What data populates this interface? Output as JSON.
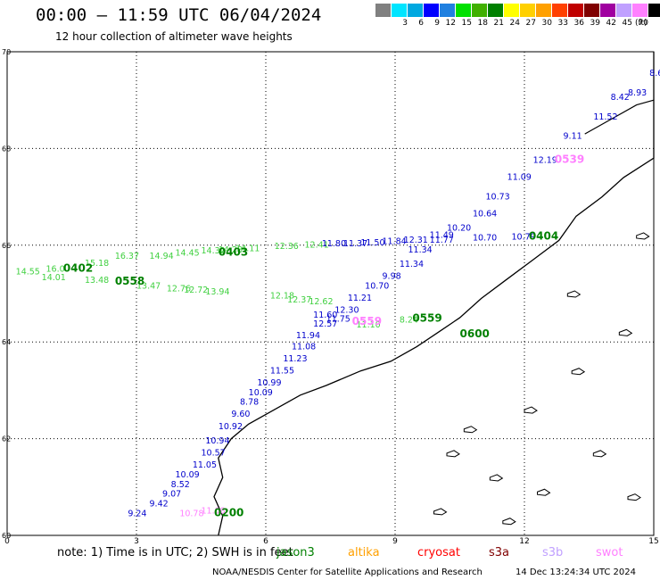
{
  "header": {
    "title": "00:00 – 11:59 UTC 06/04/2024",
    "subtitle": "12 hour collection of altimeter wave heights"
  },
  "scale": {
    "unit": "(ft)",
    "bins": [
      {
        "label": "",
        "color": "#808080"
      },
      {
        "label": "3",
        "color": "#00e5ff"
      },
      {
        "label": "6",
        "color": "#00a8e0"
      },
      {
        "label": "9",
        "color": "#0000ff"
      },
      {
        "label": "12",
        "color": "#2080e0"
      },
      {
        "label": "15",
        "color": "#00e000"
      },
      {
        "label": "18",
        "color": "#40b000"
      },
      {
        "label": "21",
        "color": "#008000"
      },
      {
        "label": "24",
        "color": "#ffff00"
      },
      {
        "label": "27",
        "color": "#ffd000"
      },
      {
        "label": "30",
        "color": "#ffa000"
      },
      {
        "label": "33",
        "color": "#ff4000"
      },
      {
        "label": "36",
        "color": "#c00000"
      },
      {
        "label": "39",
        "color": "#800000"
      },
      {
        "label": "42",
        "color": "#a000a0"
      },
      {
        "label": "45",
        "color": "#c0a0ff"
      },
      {
        "label": "70",
        "color": "#ff80ff"
      },
      {
        "label": "",
        "color": "#000000"
      }
    ]
  },
  "axes": {
    "lat_ticks": [
      "70",
      "68",
      "66",
      "64",
      "62",
      "60"
    ],
    "lon_ticks": [
      "0",
      "3",
      "6",
      "9",
      "12",
      "15"
    ]
  },
  "tracks": [
    {
      "name": "track-0402",
      "time": "0402",
      "time_color": "#008000",
      "label_color": "#40d040",
      "points": [
        {
          "v": "14.55",
          "lon": 0.2,
          "lat": 65.4
        },
        {
          "v": "16.0",
          "lon": 0.9,
          "lat": 65.45
        },
        {
          "v": "15.18",
          "lon": 1.8,
          "lat": 65.57
        },
        {
          "v": "14.94",
          "lon": 3.3,
          "lat": 65.72
        },
        {
          "v": "14.32",
          "lon": 4.5,
          "lat": 65.83
        },
        {
          "v": "14.11",
          "lon": 5.3,
          "lat": 65.88
        },
        {
          "v": "12.36",
          "lon": 6.2,
          "lat": 65.92
        },
        {
          "v": "12.41",
          "lon": 6.9,
          "lat": 65.95
        }
      ]
    },
    {
      "name": "track-0403",
      "time": "0403",
      "time_color": "#008000",
      "label_color": "#40d040",
      "points": [
        {
          "v": "16.37",
          "lon": 2.5,
          "lat": 65.72
        },
        {
          "v": "14.45",
          "lon": 3.9,
          "lat": 65.78
        },
        {
          "v": "14.28",
          "lon": 4.9,
          "lat": 65.85
        }
      ]
    },
    {
      "name": "track-0558",
      "time": "0558",
      "time_color": "#008000",
      "label_color": "#40d040",
      "points": [
        {
          "v": "14.01",
          "lon": 0.8,
          "lat": 65.28
        },
        {
          "v": "13.48",
          "lon": 1.8,
          "lat": 65.22
        },
        {
          "v": "13.47",
          "lon": 3.0,
          "lat": 65.1
        },
        {
          "v": "12.76",
          "lon": 3.7,
          "lat": 65.05
        },
        {
          "v": "12.72",
          "lon": 4.1,
          "lat": 65.02
        },
        {
          "v": "13.94",
          "lon": 4.6,
          "lat": 64.98
        },
        {
          "v": "12.18",
          "lon": 6.1,
          "lat": 64.9
        },
        {
          "v": "12.37",
          "lon": 6.5,
          "lat": 64.82
        },
        {
          "v": "12.62",
          "lon": 7.0,
          "lat": 64.78
        }
      ]
    },
    {
      "name": "track-0404",
      "time": "0404",
      "time_color": "#008000",
      "label_color": "#0000cc",
      "points": [
        {
          "v": "11.80",
          "lon": 7.3,
          "lat": 65.98
        },
        {
          "v": "11.37",
          "lon": 7.8,
          "lat": 65.98
        },
        {
          "v": "11.50",
          "lon": 8.2,
          "lat": 66.0
        },
        {
          "v": "11.84",
          "lon": 8.7,
          "lat": 66.02
        },
        {
          "v": "12.31",
          "lon": 9.2,
          "lat": 66.05
        },
        {
          "v": "11.77",
          "lon": 9.8,
          "lat": 66.05
        },
        {
          "v": "10.70",
          "lon": 10.8,
          "lat": 66.1
        },
        {
          "v": "10.79",
          "lon": 11.7,
          "lat": 66.12
        }
      ]
    },
    {
      "name": "track-0539",
      "time": "0539",
      "time_color": "#ff80ff",
      "label_color": "#0000cc",
      "points": [
        {
          "v": "8.6",
          "lon": 14.9,
          "lat": 69.5
        },
        {
          "v": "8.93",
          "lon": 14.4,
          "lat": 69.1
        },
        {
          "v": "8.42",
          "lon": 14.0,
          "lat": 69.0
        },
        {
          "v": "11.52",
          "lon": 13.6,
          "lat": 68.6
        },
        {
          "v": "9.11",
          "lon": 12.9,
          "lat": 68.2
        },
        {
          "v": "12.19",
          "lon": 12.2,
          "lat": 67.7
        },
        {
          "v": "11.09",
          "lon": 11.6,
          "lat": 67.35
        },
        {
          "v": "10.73",
          "lon": 11.1,
          "lat": 66.95
        },
        {
          "v": "10.64",
          "lon": 10.8,
          "lat": 66.6
        },
        {
          "v": "10.20",
          "lon": 10.2,
          "lat": 66.3
        },
        {
          "v": "11.49",
          "lon": 9.8,
          "lat": 66.15
        },
        {
          "v": "11.34",
          "lon": 9.3,
          "lat": 65.85
        },
        {
          "v": "11.34",
          "lon": 9.1,
          "lat": 65.55
        },
        {
          "v": "9.98",
          "lon": 8.7,
          "lat": 65.3
        }
      ]
    },
    {
      "name": "track-0559",
      "time": "0559",
      "time_color": "#008000",
      "label_color": "#0000cc",
      "points": [
        {
          "v": "10.70",
          "lon": 8.3,
          "lat": 65.1
        },
        {
          "v": "11.21",
          "lon": 7.9,
          "lat": 64.85
        },
        {
          "v": "12.30",
          "lon": 7.6,
          "lat": 64.6
        },
        {
          "v": "11.60",
          "lon": 7.1,
          "lat": 64.5
        },
        {
          "v": "11.75",
          "lon": 7.4,
          "lat": 64.42
        },
        {
          "v": "12.57",
          "lon": 7.1,
          "lat": 64.32
        },
        {
          "v": "11.94",
          "lon": 6.7,
          "lat": 64.08
        },
        {
          "v": "11.08",
          "lon": 6.6,
          "lat": 63.85
        },
        {
          "v": "11.23",
          "lon": 6.4,
          "lat": 63.6
        },
        {
          "v": "11.55",
          "lon": 6.1,
          "lat": 63.35
        },
        {
          "v": "10.99",
          "lon": 5.8,
          "lat": 63.1
        },
        {
          "v": "10.09",
          "lon": 5.6,
          "lat": 62.9
        },
        {
          "v": "8.78",
          "lon": 5.4,
          "lat": 62.7
        },
        {
          "v": "9.60",
          "lon": 5.2,
          "lat": 62.45
        },
        {
          "v": "10.92",
          "lon": 4.9,
          "lat": 62.2
        },
        {
          "v": "10.94",
          "lon": 4.6,
          "lat": 61.9
        },
        {
          "v": "10.57",
          "lon": 4.5,
          "lat": 61.65
        },
        {
          "v": "11.05",
          "lon": 4.3,
          "lat": 61.4
        },
        {
          "v": "10.09",
          "lon": 3.9,
          "lat": 61.2
        },
        {
          "v": "8.52",
          "lon": 3.8,
          "lat": 61.0
        },
        {
          "v": "9.07",
          "lon": 3.6,
          "lat": 60.8
        },
        {
          "v": "9.42",
          "lon": 3.3,
          "lat": 60.6
        },
        {
          "v": "9.24",
          "lon": 2.8,
          "lat": 60.4
        }
      ]
    },
    {
      "name": "track-0600",
      "time": "0600",
      "time_color": "#008000",
      "label_color": "#40d040",
      "points": [
        {
          "v": "8.24",
          "lon": 9.1,
          "lat": 64.4
        },
        {
          "v": "11.10",
          "lon": 8.1,
          "lat": 64.3
        }
      ]
    },
    {
      "name": "track-0200",
      "time": "0200",
      "time_color": "#008000",
      "label_color": "#ff80ff",
      "points": [
        {
          "v": "10.78",
          "lon": 4.0,
          "lat": 60.4
        },
        {
          "v": "11.08",
          "lon": 4.5,
          "lat": 60.45
        }
      ]
    }
  ],
  "time_labels": [
    {
      "text": "0402",
      "lon": 1.3,
      "lat": 65.45,
      "color": "#008000"
    },
    {
      "text": "0403",
      "lon": 4.9,
      "lat": 65.78,
      "color": "#008000"
    },
    {
      "text": "0558",
      "lon": 2.5,
      "lat": 65.18,
      "color": "#008000"
    },
    {
      "text": "0404",
      "lon": 12.1,
      "lat": 66.12,
      "color": "#008000"
    },
    {
      "text": "0539",
      "lon": 12.7,
      "lat": 67.7,
      "color": "#ff80ff"
    },
    {
      "text": "0559",
      "lon": 9.4,
      "lat": 64.42,
      "color": "#008000"
    },
    {
      "text": "0559",
      "lon": 8.0,
      "lat": 64.35,
      "color": "#ff80ff"
    },
    {
      "text": "0600",
      "lon": 10.5,
      "lat": 64.1,
      "color": "#008000"
    },
    {
      "text": "0200",
      "lon": 4.8,
      "lat": 60.4,
      "color": "#008000"
    }
  ],
  "note": {
    "prefix": "note:  1) Time is in UTC;  2) SWH is in feet",
    "missions": [
      {
        "name": "jason3",
        "color": "#008000"
      },
      {
        "name": "altika",
        "color": "#ffa000"
      },
      {
        "name": "cryosat",
        "color": "#ff0000"
      },
      {
        "name": "s3a",
        "color": "#800000"
      },
      {
        "name": "s3b",
        "color": "#c0a0ff"
      },
      {
        "name": "swot",
        "color": "#ff80ff"
      }
    ]
  },
  "footer": {
    "left": "NOAA/NESDIS Center for Satellite Applications and Research",
    "right": "14 Dec 13:24:34 UTC 2024"
  }
}
